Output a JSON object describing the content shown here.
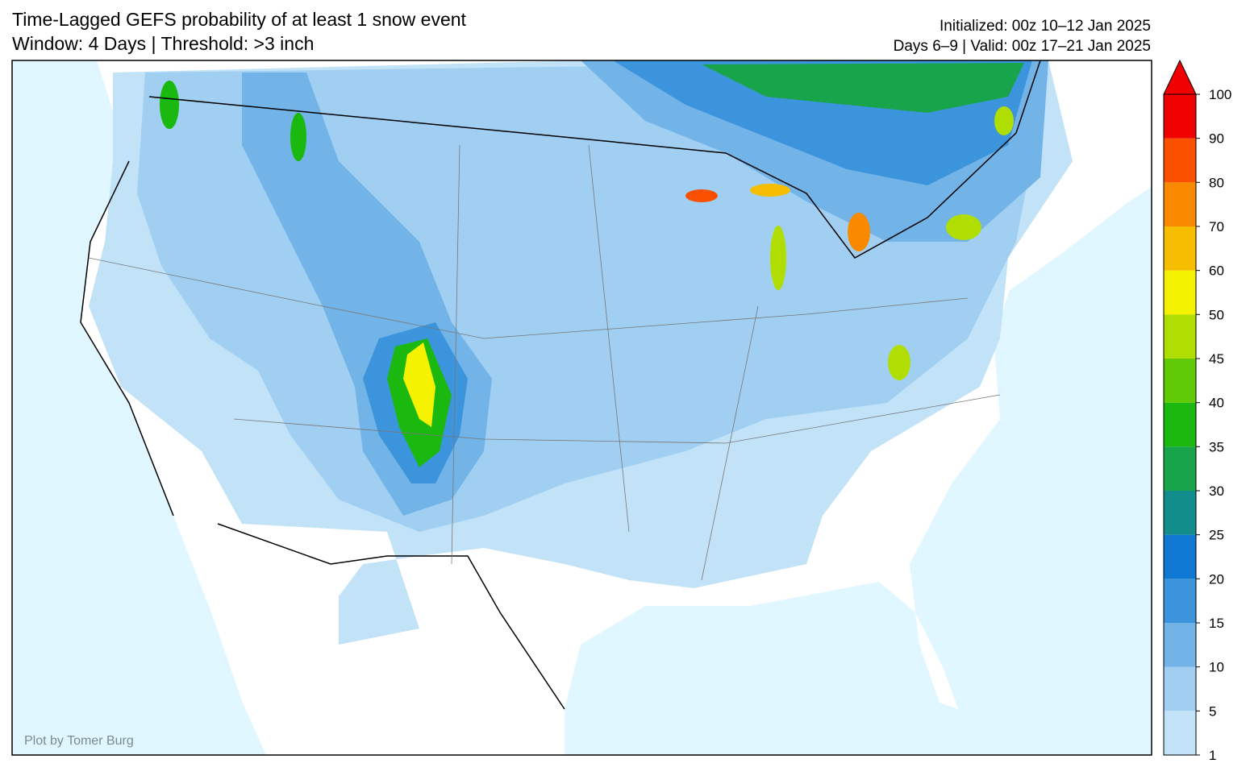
{
  "header": {
    "title": "Time-Lagged GEFS probability of at least 1 snow event",
    "subtitle": "Window: 4 Days | Threshold: >3 inch",
    "init": "Initialized: 00z 10–12 Jan 2025",
    "valid": "Days 6–9 | Valid: 00z 17–21 Jan 2025"
  },
  "credit": "Plot by Tomer Burg",
  "colorbar": {
    "levels": [
      1,
      5,
      10,
      15,
      20,
      25,
      30,
      35,
      40,
      45,
      50,
      60,
      70,
      80,
      90,
      100
    ],
    "colors": [
      "#c2e3f7",
      "#a0cff2",
      "#72b3e8",
      "#3c95dc",
      "#0e78d2",
      "#138d8c",
      "#17a44a",
      "#1bb80f",
      "#60ca06",
      "#b0de03",
      "#f5f200",
      "#f7bd00",
      "#f98a00",
      "#fa5000",
      "#f00000"
    ]
  }
}
